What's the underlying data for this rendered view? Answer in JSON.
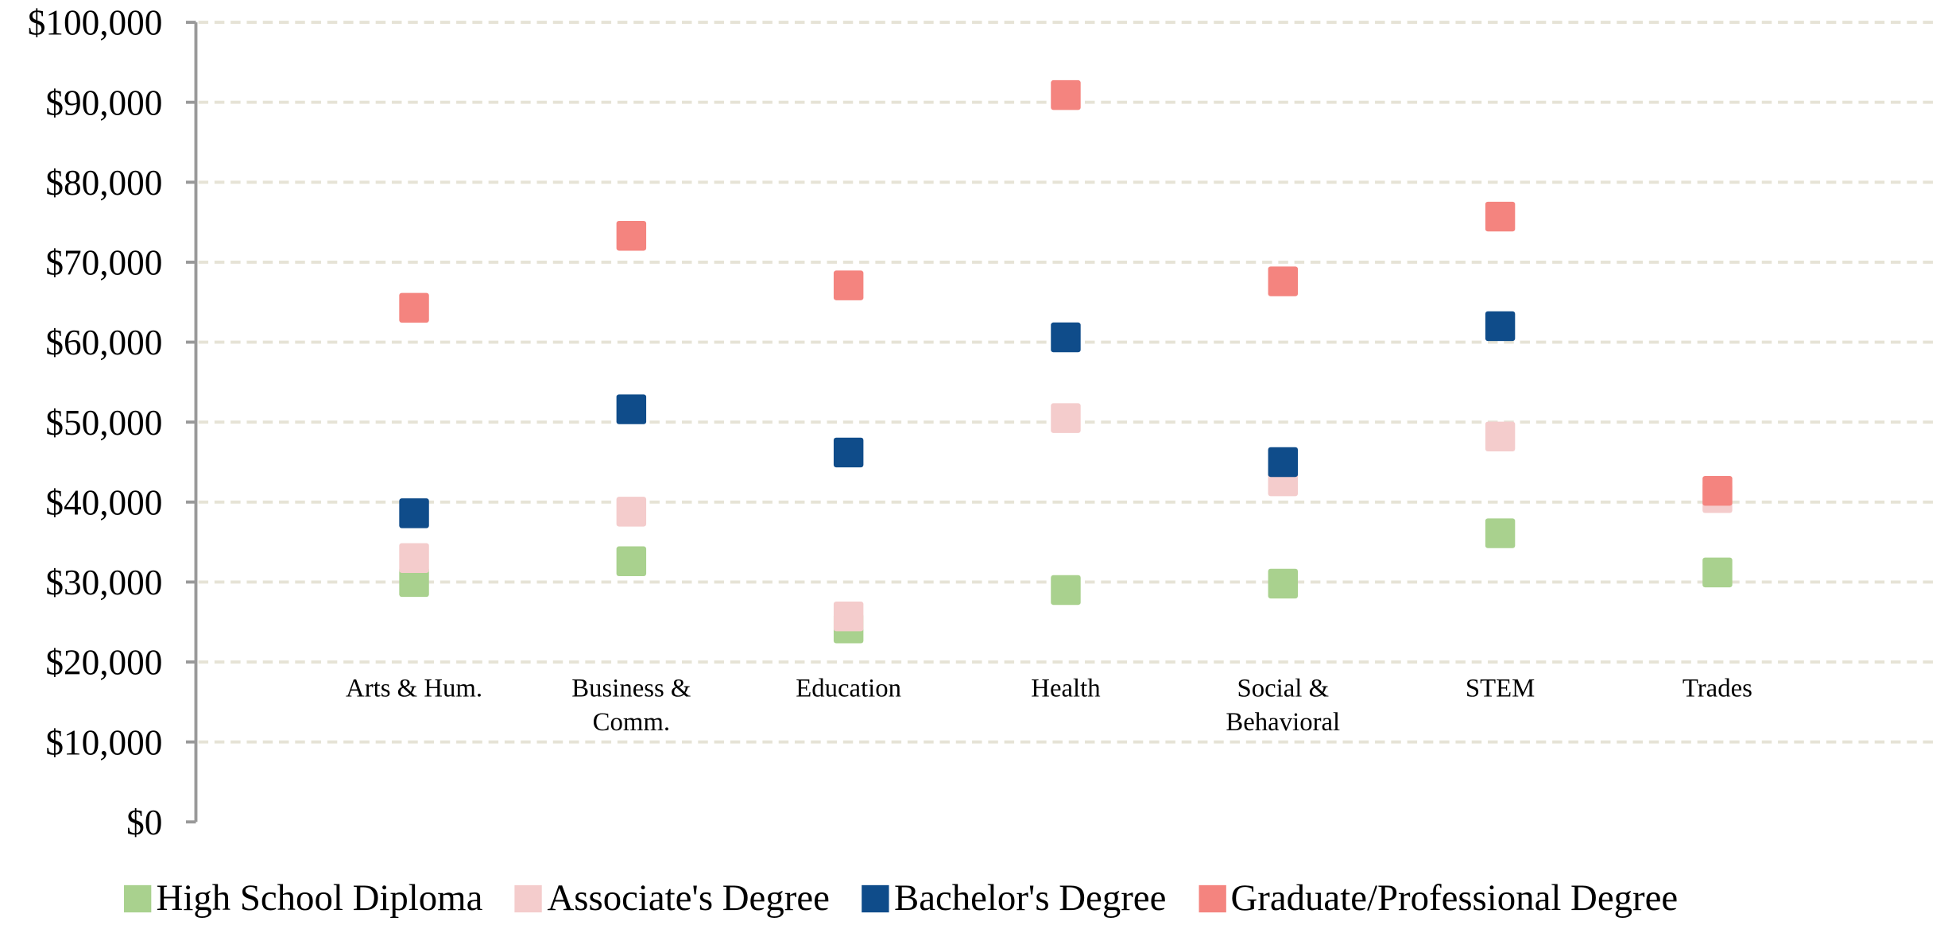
{
  "chart_data": {
    "type": "scatter",
    "categories": [
      "Arts & Hum.",
      "Business & Comm.",
      "Education",
      "Health",
      "Social & Behavioral",
      "STEM",
      "Trades"
    ],
    "series": [
      {
        "name": "High School Diploma",
        "color": "#a9d18e",
        "values": [
          30000,
          32600,
          24200,
          29000,
          29800,
          36100,
          31200
        ]
      },
      {
        "name": "Associate's Degree",
        "color": "#f4cccc",
        "values": [
          33000,
          38800,
          25700,
          50500,
          42600,
          48200,
          40500
        ]
      },
      {
        "name": "Bachelor's Degree",
        "color": "#0f4c8a",
        "values": [
          38600,
          51600,
          46200,
          60600,
          45000,
          62000,
          null
        ]
      },
      {
        "name": "Graduate/Professional Degree",
        "color": "#f4847f",
        "values": [
          64300,
          73300,
          67100,
          90900,
          67600,
          75700,
          41400
        ]
      }
    ],
    "ylim": [
      0,
      100000
    ],
    "yticks": [
      {
        "value": 0,
        "label": "$0"
      },
      {
        "value": 10000,
        "label": "$10,000"
      },
      {
        "value": 20000,
        "label": "$20,000"
      },
      {
        "value": 30000,
        "label": "$30,000"
      },
      {
        "value": 40000,
        "label": "$40,000"
      },
      {
        "value": 50000,
        "label": "$50,000"
      },
      {
        "value": 60000,
        "label": "$60,000"
      },
      {
        "value": 70000,
        "label": "$70,000"
      },
      {
        "value": 80000,
        "label": "$80,000"
      },
      {
        "value": 90000,
        "label": "$90,000"
      },
      {
        "value": 100000,
        "label": "$100,000"
      }
    ],
    "grid": true,
    "legend": "bottom"
  }
}
